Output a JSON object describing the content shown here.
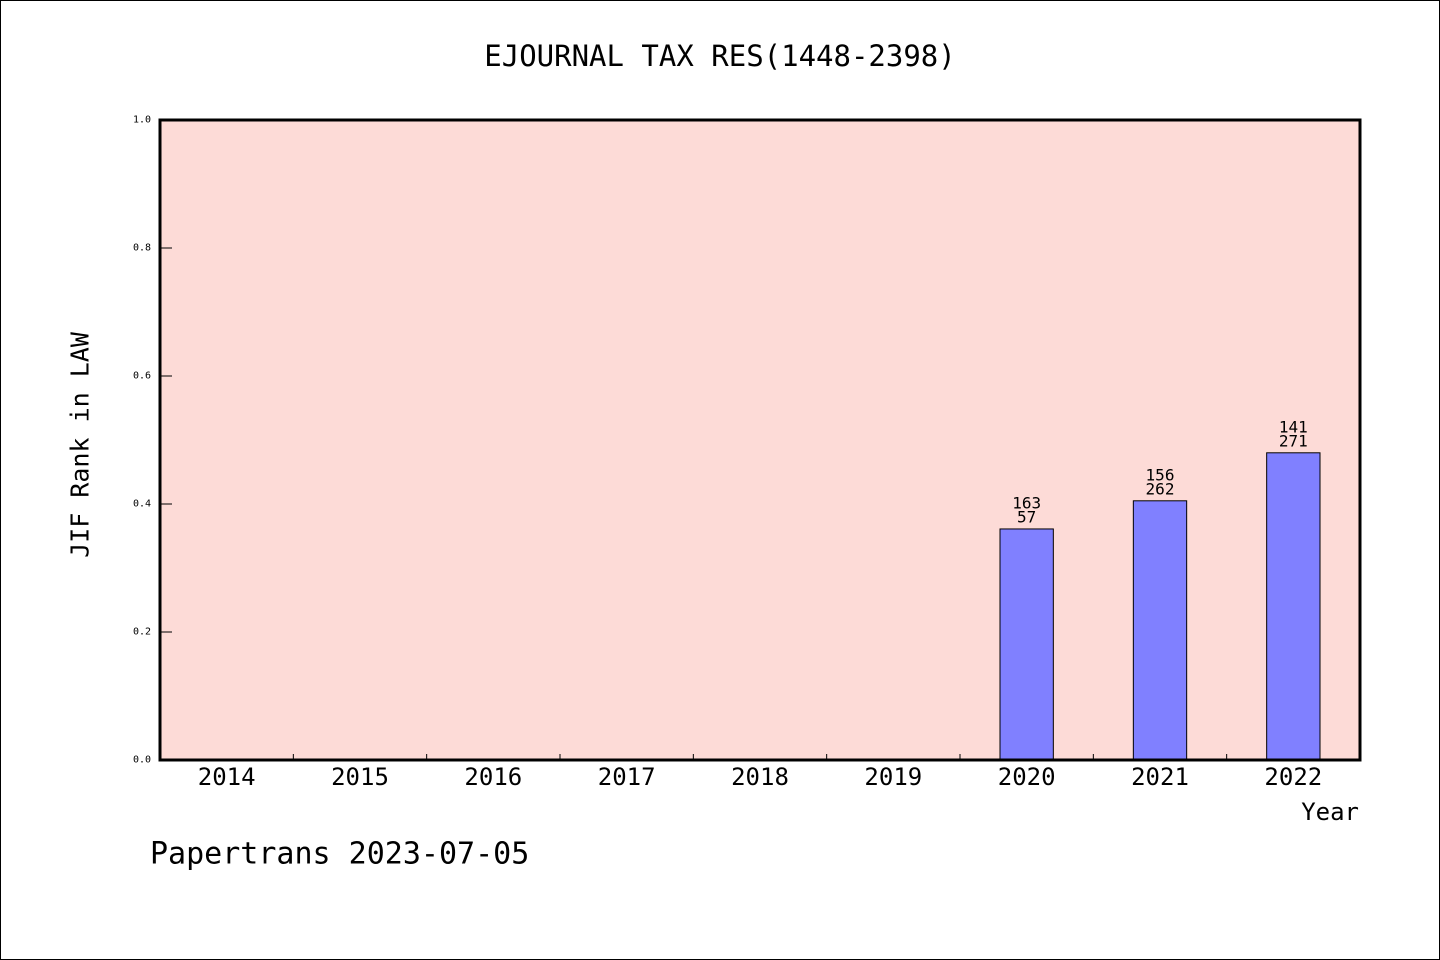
{
  "chart_data": {
    "type": "bar",
    "title": "EJOURNAL TAX RES(1448-2398)",
    "xlabel": "Year",
    "ylabel": "JIF Rank in LAW",
    "categories": [
      "2014",
      "2015",
      "2016",
      "2017",
      "2018",
      "2019",
      "2020",
      "2021",
      "2022"
    ],
    "values": [
      null,
      null,
      null,
      null,
      null,
      null,
      0.361,
      0.405,
      0.48
    ],
    "data_labels": [
      [],
      [],
      [],
      [],
      [],
      [],
      [
        "163",
        "57"
      ],
      [
        "156",
        "262"
      ],
      [
        "141",
        "271"
      ]
    ],
    "ylim": [
      0,
      1.0
    ],
    "yticks": [
      "0.0",
      "0.2",
      "0.4",
      "0.6",
      "0.8",
      "1.0"
    ],
    "grid": false
  },
  "footer": "Papertrans 2023-07-05",
  "colors": {
    "plot_background": "#FDDBD7",
    "bar": "#8080FF",
    "axis": "#000000"
  }
}
